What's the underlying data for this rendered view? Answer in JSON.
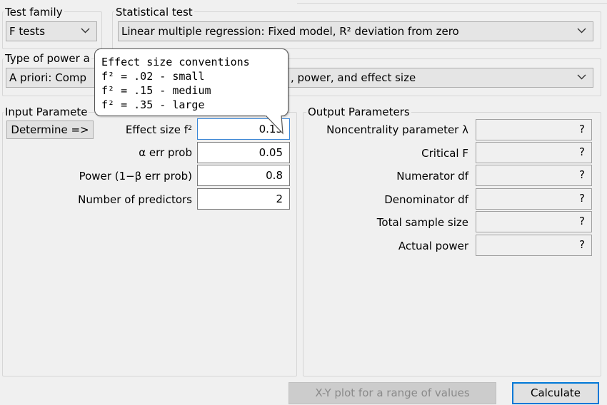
{
  "test_family": {
    "legend": "Test family",
    "selected": "F tests"
  },
  "statistical_test": {
    "legend": "Statistical test",
    "selected": "Linear multiple regression: Fixed model, R² deviation from zero"
  },
  "power_analysis": {
    "legend_visible": "Type of power a",
    "selected_visible_left": "A priori: Comp",
    "selected_visible_right": ", power, and effect size"
  },
  "input": {
    "legend_visible": "Input Paramete",
    "determine_label": "Determine =>",
    "rows": [
      {
        "label": "Effect size f²",
        "value": "0.15"
      },
      {
        "label": "α err prob",
        "value": "0.05"
      },
      {
        "label": "Power (1−β err prob)",
        "value": "0.8"
      },
      {
        "label": "Number of predictors",
        "value": "2"
      }
    ]
  },
  "output": {
    "legend": "Output Parameters",
    "rows": [
      {
        "label": "Noncentrality parameter λ",
        "value": "?"
      },
      {
        "label": "Critical F",
        "value": "?"
      },
      {
        "label": "Numerator df",
        "value": "?"
      },
      {
        "label": "Denominator df",
        "value": "?"
      },
      {
        "label": "Total sample size",
        "value": "?"
      },
      {
        "label": "Actual power",
        "value": "?"
      }
    ]
  },
  "tooltip": {
    "title": "Effect size conventions",
    "lines": [
      "f² = .02 - small",
      "f² = .15 - medium",
      "f² = .35 - large"
    ]
  },
  "buttons": {
    "xy_plot": "X-Y plot for a range of values",
    "calculate": "Calculate"
  },
  "colors": {
    "focus_border": "#3a86d6",
    "disabled_text": "#8a8a8a",
    "default_button_border": "#0078d7"
  }
}
